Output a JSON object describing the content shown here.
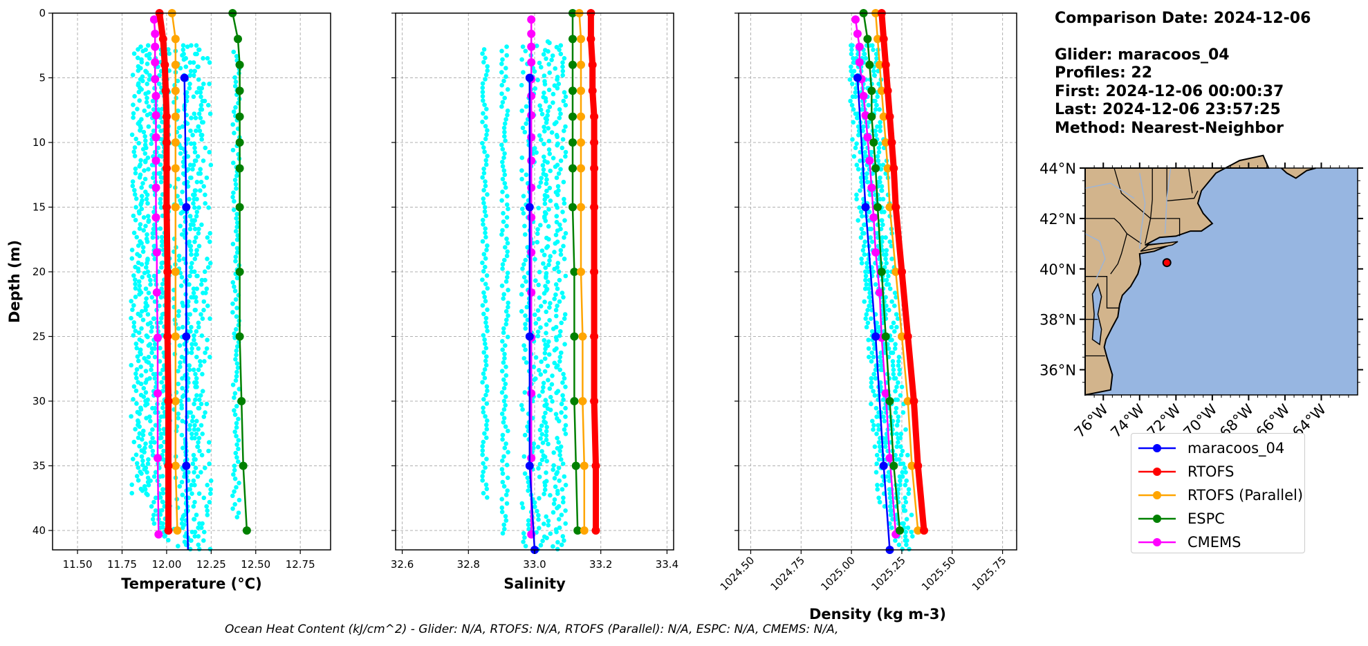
{
  "info": {
    "comparison": "Comparison Date: 2024-12-06",
    "glider": "Glider: maracoos_04",
    "profiles": "Profiles: 22",
    "first": "First: 2024-12-06 00:00:37",
    "last": "Last: 2024-12-06 23:57:25",
    "method": "Method: Nearest-Neighbor"
  },
  "footer": "Ocean Heat Content (kJ/cm^2) - Glider: N/A,  RTOFS: N/A,  RTOFS (Parallel): N/A,  ESPC: N/A,  CMEMS: N/A,",
  "colors": {
    "glider_scatter": "#00ffff",
    "maracoos_04": "#0000ff",
    "RTOFS": "#ff0000",
    "RTOFS (Parallel)": "#ffa500",
    "ESPC": "#008000",
    "CMEMS": "#ff00ff",
    "land": "#d2b48c",
    "ocean": "#97b6e1",
    "glider_marker": "#ff0000"
  },
  "legend": [
    "maracoos_04",
    "RTOFS",
    "RTOFS (Parallel)",
    "ESPC",
    "CMEMS"
  ],
  "chart_data": [
    {
      "type": "line",
      "xlabel": "Temperature (°C)",
      "ylabel": "Depth (m)",
      "xlim": [
        11.36,
        12.92
      ],
      "ylim": [
        41.5,
        0
      ],
      "xticks": [
        "11.50",
        "11.75",
        "12.00",
        "12.25",
        "12.50",
        "12.75"
      ],
      "yticks": [
        "0",
        "5",
        "10",
        "15",
        "20",
        "25",
        "30",
        "35",
        "40"
      ],
      "grid": true,
      "series": [
        {
          "name": "maracoos_04",
          "depth": [
            5,
            15,
            25,
            35,
            41.5
          ],
          "values": [
            12.1,
            12.11,
            12.11,
            12.11,
            12.12
          ],
          "marker_count": 4
        },
        {
          "name": "RTOFS",
          "depth": [
            0,
            2,
            4,
            6,
            8,
            10,
            12,
            15,
            20,
            25,
            30,
            35,
            40
          ],
          "values": [
            11.96,
            11.98,
            11.99,
            11.995,
            12.0,
            12.0,
            12.0,
            12.0,
            12.005,
            12.005,
            12.01,
            12.01,
            12.01
          ],
          "markers": false
        },
        {
          "name": "RTOFS (Parallel)",
          "depth": [
            0,
            2,
            4,
            6,
            8,
            10,
            12,
            15,
            20,
            25,
            30,
            35,
            40
          ],
          "values": [
            12.03,
            12.05,
            12.05,
            12.05,
            12.05,
            12.05,
            12.05,
            12.05,
            12.05,
            12.05,
            12.05,
            12.05,
            12.06
          ]
        },
        {
          "name": "ESPC",
          "depth": [
            0,
            2,
            4,
            6,
            8,
            10,
            12,
            15,
            20,
            25,
            30,
            35,
            40
          ],
          "values": [
            12.37,
            12.4,
            12.41,
            12.41,
            12.41,
            12.41,
            12.41,
            12.41,
            12.41,
            12.41,
            12.42,
            12.43,
            12.45
          ]
        },
        {
          "name": "CMEMS",
          "depth": [
            0.5,
            1.6,
            2.6,
            3.8,
            5.1,
            6.4,
            7.9,
            9.6,
            11.4,
            13.5,
            15.8,
            18.5,
            21.6,
            25.1,
            29.4,
            34.4,
            40.3
          ],
          "values": [
            11.93,
            11.935,
            11.935,
            11.935,
            11.935,
            11.94,
            11.94,
            11.94,
            11.94,
            11.94,
            11.94,
            11.945,
            11.945,
            11.95,
            11.95,
            11.95,
            11.955
          ]
        }
      ]
    },
    {
      "type": "line",
      "xlabel": "Salinity",
      "ylabel": "",
      "xlim": [
        32.58,
        33.42
      ],
      "ylim": [
        41.5,
        0
      ],
      "xticks": [
        "32.6",
        "32.8",
        "33.0",
        "33.2",
        "33.4"
      ],
      "grid": true,
      "series": [
        {
          "name": "maracoos_04",
          "depth": [
            5,
            15,
            25,
            35,
            41.5
          ],
          "values": [
            32.985,
            32.985,
            32.985,
            32.985,
            33.0
          ]
        },
        {
          "name": "RTOFS",
          "depth": [
            0,
            2,
            4,
            6,
            8,
            10,
            12,
            15,
            20,
            25,
            30,
            35,
            40
          ],
          "values": [
            33.17,
            33.17,
            33.175,
            33.175,
            33.18,
            33.18,
            33.18,
            33.18,
            33.18,
            33.18,
            33.18,
            33.185,
            33.185
          ]
        },
        {
          "name": "RTOFS (Parallel)",
          "depth": [
            0,
            2,
            4,
            6,
            8,
            10,
            12,
            15,
            20,
            25,
            30,
            35,
            40
          ],
          "values": [
            33.135,
            33.14,
            33.14,
            33.14,
            33.14,
            33.14,
            33.14,
            33.14,
            33.14,
            33.145,
            33.145,
            33.15,
            33.15
          ]
        },
        {
          "name": "ESPC",
          "depth": [
            0,
            2,
            4,
            6,
            8,
            10,
            12,
            15,
            20,
            25,
            30,
            35,
            40
          ],
          "values": [
            33.115,
            33.115,
            33.115,
            33.115,
            33.115,
            33.115,
            33.115,
            33.115,
            33.12,
            33.12,
            33.12,
            33.125,
            33.13
          ]
        },
        {
          "name": "CMEMS",
          "depth": [
            0.5,
            1.6,
            2.6,
            3.8,
            5.1,
            6.4,
            7.9,
            9.6,
            11.4,
            13.5,
            15.8,
            18.5,
            21.6,
            25.1,
            29.4,
            34.4,
            40.3
          ],
          "values": [
            32.99,
            32.99,
            32.99,
            32.99,
            32.99,
            32.99,
            32.99,
            32.99,
            32.99,
            32.99,
            32.99,
            32.99,
            32.99,
            32.99,
            32.99,
            32.99,
            32.99
          ]
        }
      ]
    },
    {
      "type": "line",
      "xlabel": "Density (kg m-3)",
      "ylabel": "",
      "xlim": [
        1024.44,
        1025.82
      ],
      "ylim": [
        41.5,
        0
      ],
      "xticks": [
        "1024.50",
        "1024.75",
        "1025.00",
        "1025.25",
        "1025.50",
        "1025.75"
      ],
      "grid": true,
      "series": [
        {
          "name": "maracoos_04",
          "depth": [
            5,
            15,
            25,
            35,
            41.5
          ],
          "values": [
            1025.03,
            1025.07,
            1025.12,
            1025.16,
            1025.19
          ]
        },
        {
          "name": "RTOFS",
          "depth": [
            0,
            2,
            4,
            6,
            8,
            10,
            12,
            15,
            20,
            25,
            30,
            35,
            40
          ],
          "values": [
            1025.15,
            1025.16,
            1025.17,
            1025.18,
            1025.19,
            1025.2,
            1025.21,
            1025.22,
            1025.25,
            1025.28,
            1025.31,
            1025.33,
            1025.36
          ]
        },
        {
          "name": "RTOFS (Parallel)",
          "depth": [
            0,
            2,
            4,
            6,
            8,
            10,
            12,
            15,
            20,
            25,
            30,
            35,
            40
          ],
          "values": [
            1025.12,
            1025.13,
            1025.14,
            1025.15,
            1025.16,
            1025.17,
            1025.18,
            1025.19,
            1025.22,
            1025.25,
            1025.28,
            1025.3,
            1025.33
          ]
        },
        {
          "name": "ESPC",
          "depth": [
            0,
            2,
            4,
            6,
            8,
            10,
            12,
            15,
            20,
            25,
            30,
            35,
            40
          ],
          "values": [
            1025.06,
            1025.08,
            1025.09,
            1025.1,
            1025.1,
            1025.11,
            1025.12,
            1025.13,
            1025.15,
            1025.17,
            1025.19,
            1025.21,
            1025.24
          ]
        },
        {
          "name": "CMEMS",
          "depth": [
            0.5,
            1.6,
            2.6,
            3.8,
            5.1,
            6.4,
            7.9,
            9.6,
            11.4,
            13.5,
            15.8,
            18.5,
            21.6,
            25.1,
            29.4,
            34.4,
            40.3
          ],
          "values": [
            1025.02,
            1025.03,
            1025.04,
            1025.04,
            1025.05,
            1025.06,
            1025.07,
            1025.08,
            1025.09,
            1025.1,
            1025.11,
            1025.12,
            1025.14,
            1025.15,
            1025.17,
            1025.19,
            1025.22
          ]
        }
      ]
    },
    {
      "type": "map",
      "lat_ticks": [
        "36°N",
        "38°N",
        "40°N",
        "42°N",
        "44°N"
      ],
      "lon_ticks": [
        "76°W",
        "74°W",
        "72°W",
        "70°W",
        "68°W",
        "66°W",
        "64°W"
      ],
      "lat_range": [
        35,
        44
      ],
      "lon_range": [
        -77,
        -62
      ],
      "glider_position": {
        "lon": -72.5,
        "lat": 40.25
      }
    }
  ]
}
